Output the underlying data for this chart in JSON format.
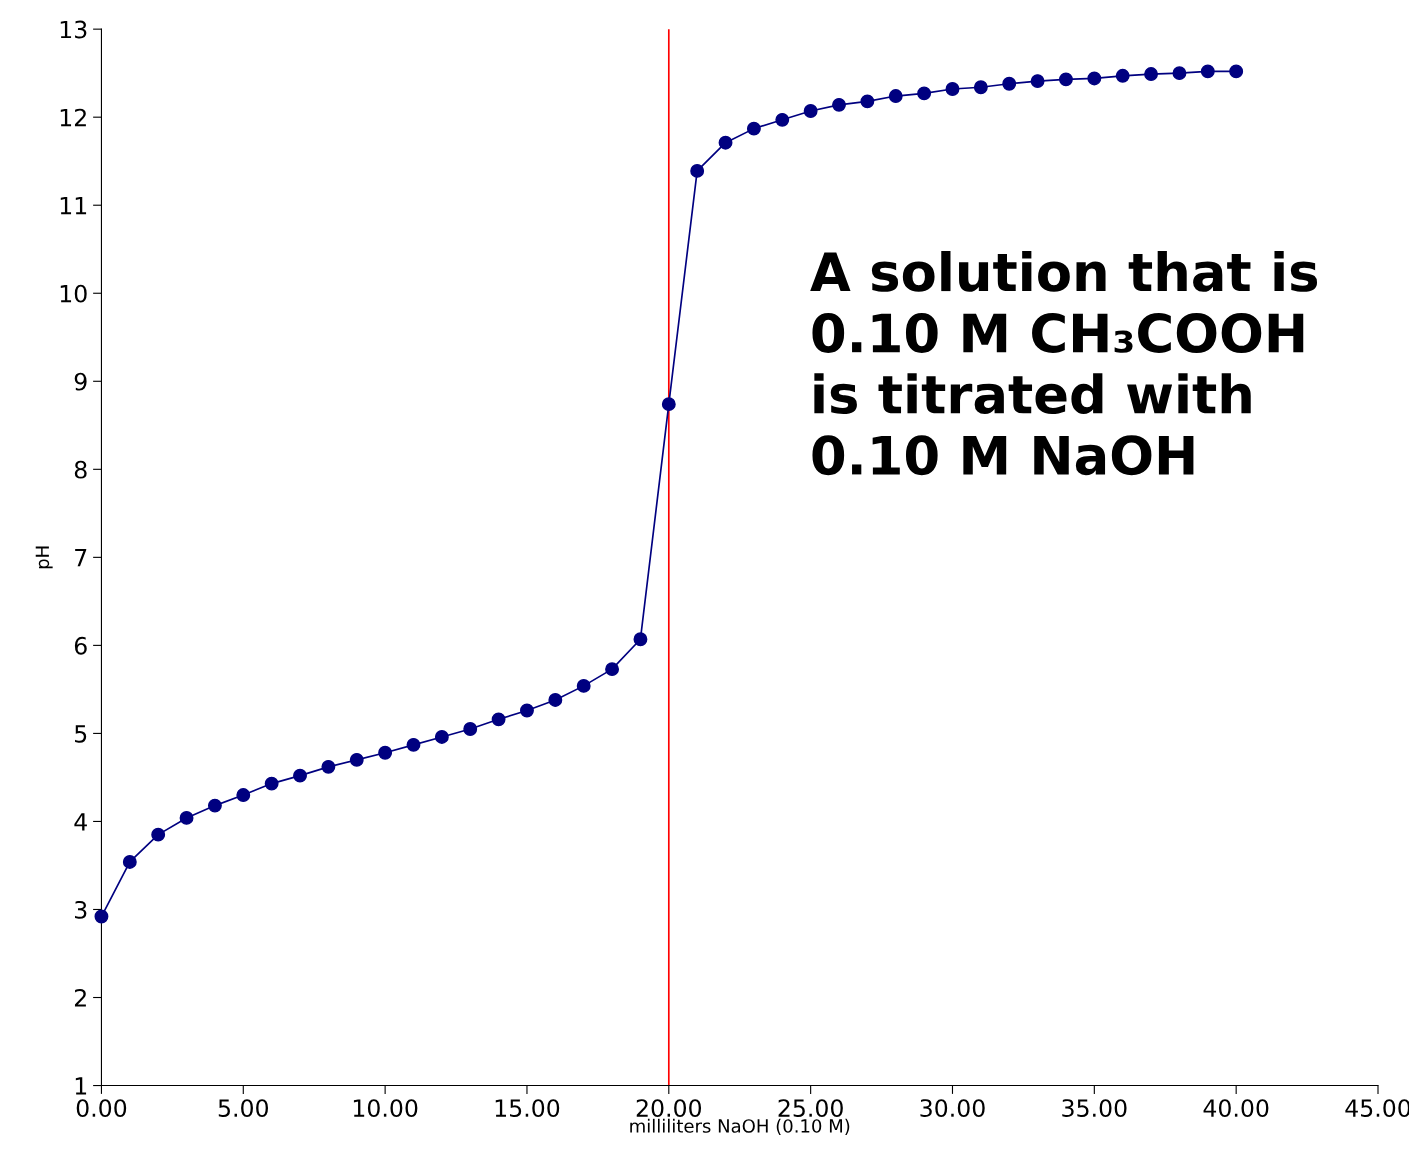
{
  "chart_data": {
    "type": "line",
    "xlabel": "milliliters NaOH (0.10 M)",
    "ylabel": "pH",
    "x": [
      0,
      1,
      2,
      3,
      4,
      5,
      6,
      7,
      8,
      9,
      10,
      11,
      12,
      13,
      14,
      15,
      16,
      17,
      18,
      19,
      20,
      21,
      22,
      23,
      24,
      25,
      26,
      27,
      28,
      29,
      30,
      31,
      32,
      33,
      34,
      35,
      36,
      37,
      38,
      39,
      40
    ],
    "series": [
      {
        "color": "#000080",
        "values": [
          2.92,
          3.54,
          3.85,
          4.04,
          4.18,
          4.3,
          4.43,
          4.52,
          4.62,
          4.7,
          4.78,
          4.87,
          4.96,
          5.05,
          5.16,
          5.26,
          5.38,
          5.54,
          5.73,
          6.07,
          8.74,
          11.39,
          11.71,
          11.87,
          11.97,
          12.07,
          12.14,
          12.18,
          12.24,
          12.27,
          12.32,
          12.34,
          12.38,
          12.41,
          12.43,
          12.44,
          12.47,
          12.49,
          12.5,
          12.52,
          12.52
        ]
      }
    ],
    "marker": "circle",
    "line_style": "solid",
    "grid": false,
    "legend": false,
    "xlim": [
      0,
      45
    ],
    "ylim": [
      1,
      13
    ],
    "xticks": [
      {
        "value": 0,
        "label": "0.00"
      },
      {
        "value": 5,
        "label": "5.00"
      },
      {
        "value": 10,
        "label": "10.00"
      },
      {
        "value": 15,
        "label": "15.00"
      },
      {
        "value": 20,
        "label": "20.00"
      },
      {
        "value": 25,
        "label": "25.00"
      },
      {
        "value": 30,
        "label": "30.00"
      },
      {
        "value": 35,
        "label": "35.00"
      },
      {
        "value": 40,
        "label": "40.00"
      },
      {
        "value": 45,
        "label": "45.00"
      }
    ],
    "yticks": [
      1,
      2,
      3,
      4,
      5,
      6,
      7,
      8,
      9,
      10,
      11,
      12,
      13
    ],
    "ref_lines": [
      {
        "axis": "x",
        "value": 20,
        "color": "#ff0000",
        "line_style": "solid"
      }
    ],
    "annotations": [
      "A solution that is\n0.10 M CH₃COOH\nis titrated with\n0.10 M NaOH"
    ]
  }
}
